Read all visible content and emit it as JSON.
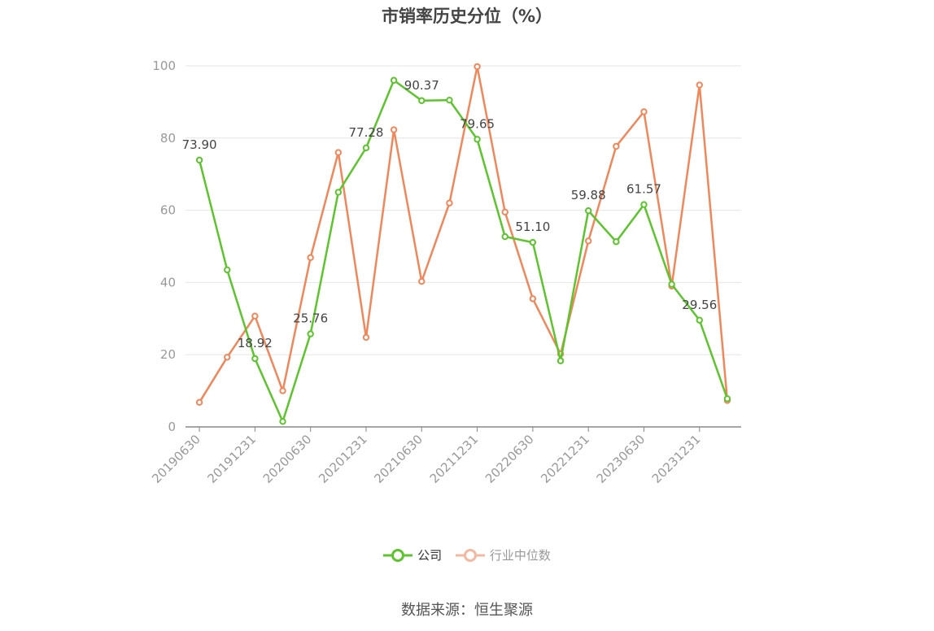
{
  "chart_data": {
    "type": "line",
    "title": "市销率历史分位（%）",
    "xlabel": "",
    "ylabel": "",
    "ylim": [
      0,
      100
    ],
    "yticks": [
      0,
      20,
      40,
      60,
      80,
      100
    ],
    "grid": true,
    "legend_position": "bottom-center",
    "x": [
      "20190630",
      "20190930",
      "20191231",
      "20200331",
      "20200630",
      "20200930",
      "20201231",
      "20210331",
      "20210630",
      "20210930",
      "20211231",
      "20220331",
      "20220630",
      "20220930",
      "20221231",
      "20230331",
      "20230630",
      "20230930",
      "20231231",
      "20240331"
    ],
    "xtick_labels": [
      "20190630",
      "20191231",
      "20200630",
      "20201231",
      "20210630",
      "20211231",
      "20220630",
      "20221231",
      "20230630",
      "20231231"
    ],
    "series": [
      {
        "name": "公司",
        "color": "#5cc42c",
        "values": [
          73.9,
          43.5,
          18.92,
          1.5,
          25.76,
          65.0,
          77.28,
          96.0,
          90.37,
          90.5,
          79.65,
          52.7,
          51.1,
          18.3,
          59.88,
          51.3,
          61.57,
          39.5,
          29.56,
          7.8
        ],
        "labels": {
          "0": "73.90",
          "2": "18.92",
          "4": "25.76",
          "6": "77.28",
          "8": "90.37",
          "10": "79.65",
          "12": "51.10",
          "14": "59.88",
          "16": "61.57",
          "18": "29.56"
        }
      },
      {
        "name": "行业中位数",
        "color": "#f0875a",
        "values": [
          6.8,
          19.3,
          30.7,
          10.0,
          46.9,
          76.0,
          24.8,
          82.3,
          40.3,
          62.0,
          99.8,
          59.5,
          35.5,
          20.2,
          51.5,
          77.7,
          87.3,
          39.0,
          94.7,
          7.3
        ]
      }
    ]
  },
  "legend": {
    "company_label": "公司",
    "industry_label": "行业中位数",
    "industry_inactive_color": "#f4b8a0"
  },
  "source": "数据来源：恒生聚源"
}
